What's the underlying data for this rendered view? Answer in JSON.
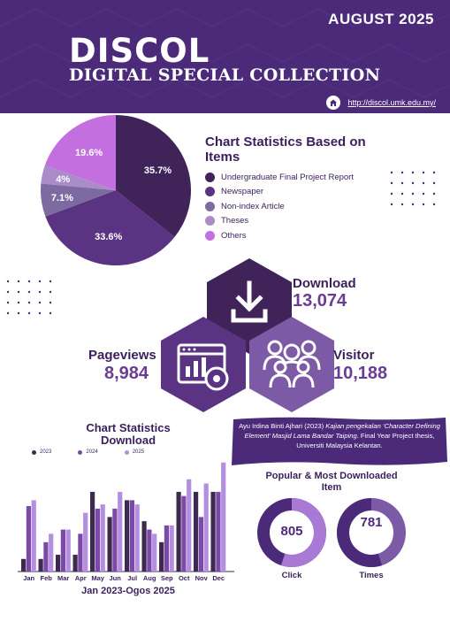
{
  "header": {
    "month": "AUGUST 2025",
    "brand": "DISCOL",
    "subtitle": "DIGITAL SPECIAL COLLECTION",
    "url": "http://discol.umk.edu.my/",
    "url_icon": "home-icon"
  },
  "item_chart": {
    "title": "Chart Statistics Based on Items",
    "slice_labels": [
      "35.7%",
      "33.6%",
      "7.1%",
      "4%",
      "19.6%"
    ]
  },
  "stats": {
    "download": {
      "label": "Download",
      "value": "13,074",
      "icon": "download-icon"
    },
    "pageviews": {
      "label": "Pageviews",
      "value": "8,984",
      "icon": "browser-chart-eye-icon"
    },
    "visitor": {
      "label": "Visitor",
      "value": "10,188",
      "icon": "group-icon"
    }
  },
  "download_chart": {
    "title": "Chart Statistics Download",
    "caption": "Jan 2023-Ogos 2025"
  },
  "citation": {
    "author": "Ayu Irdina Binti Ajhari (2023) ",
    "title": "Kajian pengekalan ‘Character Defining Element’ Masjid Lama Bandar Taiping",
    "rest": ". Final Year Project thesis, Universiti Malaysia Kelantan."
  },
  "popular": {
    "title": "Popular & Most Downloaded Item",
    "click": {
      "value": "805",
      "label": "Click",
      "fraction": 0.55
    },
    "times": {
      "value": "781",
      "label": "Times",
      "fraction": 0.55
    }
  },
  "colors": {
    "dark": "#3f2359",
    "mid": "#5b3383",
    "gray": "#7d6aa0",
    "light": "#a98cc8",
    "pink": "#c46fe0",
    "bar2023": "#3d2a4e",
    "bar2024": "#7b4aa8",
    "bar2025": "#b48fe0"
  },
  "chart_data": [
    {
      "type": "pie",
      "title": "Chart Statistics Based on Items",
      "categories": [
        "Undergraduate Final Project Report",
        "Newspaper",
        "Non-index Article",
        "Theses",
        "Others"
      ],
      "values": [
        35.7,
        33.6,
        7.1,
        4,
        19.6
      ]
    },
    {
      "type": "bar",
      "title": "Chart Statistics Download",
      "xlabel": "Jan 2023-Ogos 2025",
      "categories": [
        "Jan",
        "Feb",
        "Mar",
        "Apr",
        "May",
        "Jun",
        "Jul",
        "Aug",
        "Sep",
        "Oct",
        "Nov",
        "Dec"
      ],
      "ylim": [
        0,
        1350
      ],
      "series": [
        {
          "name": "2023",
          "values": [
            150,
            150,
            200,
            200,
            950,
            650,
            850,
            600,
            350,
            950,
            950,
            950
          ]
        },
        {
          "name": "2024",
          "values": [
            780,
            350,
            500,
            450,
            750,
            750,
            850,
            500,
            550,
            900,
            650,
            950
          ]
        },
        {
          "name": "2025",
          "values": [
            850,
            450,
            500,
            700,
            800,
            950,
            800,
            450,
            550,
            1100,
            1050,
            1300
          ]
        }
      ]
    }
  ]
}
